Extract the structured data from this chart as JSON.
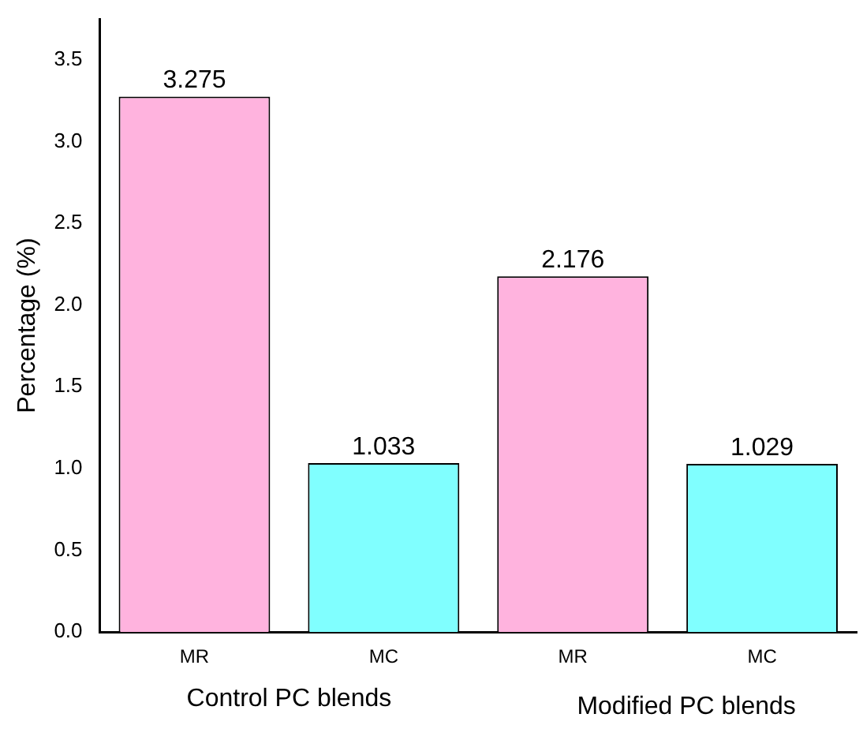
{
  "chart_data": {
    "type": "bar",
    "ylabel": "Percentage (%)",
    "categories": [
      "MR",
      "MC",
      "MR",
      "MC"
    ],
    "values": [
      3.275,
      1.033,
      2.176,
      1.029
    ],
    "colors": [
      "#ffb3de",
      "#80ffff",
      "#ffb3de",
      "#80ffff"
    ],
    "ylim": [
      0,
      3.75
    ],
    "yticks": [
      {
        "value": 0,
        "label": "0.0"
      },
      {
        "value": 0.5,
        "label": "0.5"
      },
      {
        "value": 1,
        "label": "1.0"
      },
      {
        "value": 1.5,
        "label": "1.5"
      },
      {
        "value": 2,
        "label": "2.0"
      },
      {
        "value": 2.5,
        "label": "2.5"
      },
      {
        "value": 3,
        "label": "3.0"
      },
      {
        "value": 3.5,
        "label": "3.5"
      }
    ],
    "data_labels": true,
    "grid": false,
    "legend": false,
    "annotations": [
      "Control PC blends",
      "Modified PC blends"
    ]
  }
}
